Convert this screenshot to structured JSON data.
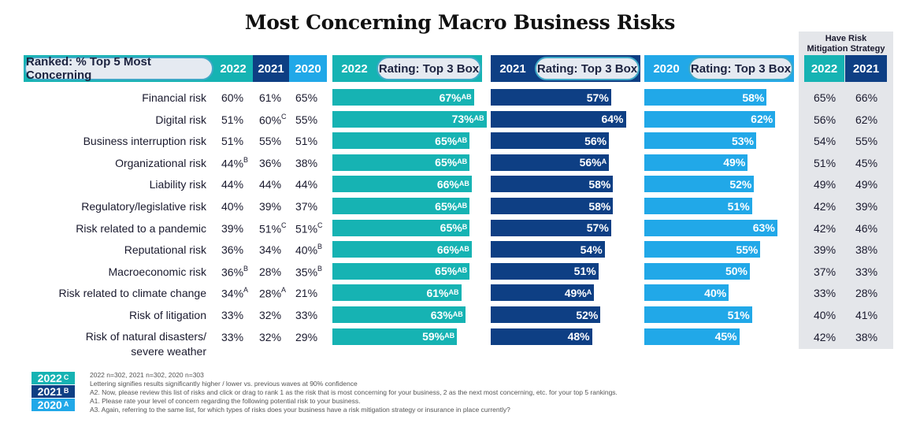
{
  "title": "Most Concerning Macro Business Risks",
  "header": {
    "ranked_label": "Ranked: % Top 5 Most Concerning",
    "rating_label": "Rating: Top 3 Box",
    "mitigation_label_line1": "Have Risk",
    "mitigation_label_line2": "Mitigation Strategy",
    "years": [
      "2022",
      "2021",
      "2020"
    ],
    "mitigation_years": [
      "2022",
      "2021"
    ]
  },
  "colors": {
    "y2022": "#16b3b3",
    "y2021": "#0e3f84",
    "y2020": "#21a8e8",
    "pill_border": "#3fa9c7",
    "mitigation_bg": "#e4e6ea"
  },
  "chart_data": {
    "type": "bar",
    "title": "Most Concerning Macro Business Risks",
    "categories": [
      "Financial risk",
      "Digital risk",
      "Business interruption risk",
      "Organizational risk",
      "Liability risk",
      "Regulatory/legislative risk",
      "Risk related to a pandemic",
      "Reputational risk",
      "Macroeconomic risk",
      "Risk related to climate change",
      "Risk of litigation",
      "Risk of natural disasters/ severe weather"
    ],
    "ranked": {
      "2022": [
        60,
        51,
        51,
        44,
        44,
        40,
        39,
        36,
        36,
        34,
        33,
        33
      ],
      "2021": [
        61,
        60,
        55,
        36,
        44,
        39,
        51,
        34,
        28,
        28,
        32,
        32
      ],
      "2020": [
        65,
        55,
        51,
        38,
        44,
        37,
        51,
        40,
        35,
        21,
        33,
        29
      ],
      "sig_2022": [
        "",
        "",
        "",
        "B",
        "",
        "",
        "",
        "",
        "B",
        "A",
        "",
        ""
      ],
      "sig_2021": [
        "",
        "C",
        "",
        "",
        "",
        "",
        "C",
        "",
        "",
        "A",
        "",
        ""
      ],
      "sig_2020": [
        "",
        "",
        "",
        "",
        "",
        "",
        "C",
        "B",
        "B",
        "",
        "",
        ""
      ]
    },
    "series": [
      {
        "name": "2022",
        "values": [
          67,
          73,
          65,
          65,
          66,
          65,
          65,
          66,
          65,
          61,
          63,
          59
        ],
        "sig": [
          "AB",
          "AB",
          "AB",
          "AB",
          "AB",
          "AB",
          "B",
          "AB",
          "AB",
          "AB",
          "AB",
          "AB"
        ]
      },
      {
        "name": "2021",
        "values": [
          57,
          64,
          56,
          56,
          58,
          58,
          57,
          54,
          51,
          49,
          52,
          48
        ],
        "sig": [
          "",
          "",
          "",
          "A",
          "",
          "",
          "",
          "",
          "",
          "A",
          "",
          ""
        ]
      },
      {
        "name": "2020",
        "values": [
          58,
          62,
          53,
          49,
          52,
          51,
          63,
          55,
          50,
          40,
          51,
          45
        ],
        "sig": [
          "",
          "",
          "",
          "",
          "",
          "",
          "",
          "",
          "",
          "",
          "",
          ""
        ]
      }
    ],
    "mitigation": {
      "2022": [
        65,
        56,
        54,
        51,
        49,
        42,
        42,
        39,
        37,
        33,
        40,
        42
      ],
      "2021": [
        66,
        62,
        55,
        45,
        49,
        39,
        46,
        38,
        33,
        28,
        41,
        38
      ]
    },
    "xlabel": "",
    "ylabel": ""
  },
  "legend": [
    {
      "year": "2022",
      "letter": "C"
    },
    {
      "year": "2021",
      "letter": "B"
    },
    {
      "year": "2020",
      "letter": "A"
    }
  ],
  "notes": [
    "2022 n=302, 2021 n=302, 2020 n=303",
    "Lettering signifies results significantly higher / lower vs. previous waves at 90% confidence",
    "A2. Now, please review this list of risks and click or drag to rank 1 as the risk that is most concerning for your business, 2 as the next most concerning, etc. for your top 5 rankings.",
    "A1. Please rate your level of concern regarding the following potential risk to your business.",
    "A3. Again, referring to the same list, for which types of risks does your business have a risk mitigation strategy or insurance in place currently?"
  ]
}
